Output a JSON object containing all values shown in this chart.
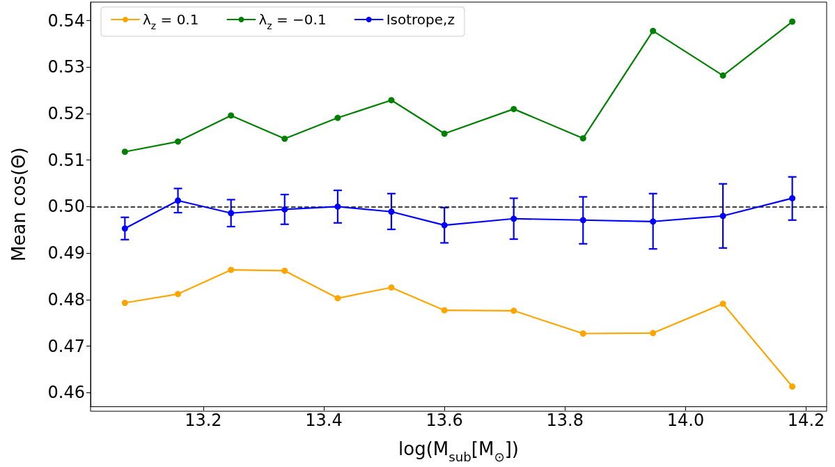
{
  "chart_data": {
    "type": "line",
    "xlabel": "log(M$_{sub}$[M$_{⊙}$])",
    "ylabel": "Mean cos(Θ)",
    "x": [
      13.07,
      13.158,
      13.246,
      13.335,
      13.423,
      13.512,
      13.6,
      13.715,
      13.83,
      13.946,
      14.062,
      14.177
    ],
    "series": [
      {
        "name": "λ$_{z}$ = 0.1",
        "color": "#ffa500",
        "values": [
          0.4793,
          0.4812,
          0.4864,
          0.4862,
          0.4803,
          0.4826,
          0.4777,
          0.4776,
          0.4727,
          0.4728,
          0.4791,
          0.4613
        ]
      },
      {
        "name": "λ$_{z}$ = −0.1",
        "color": "#008000",
        "values": [
          0.5118,
          0.514,
          0.5196,
          0.5146,
          0.5191,
          0.5229,
          0.5157,
          0.521,
          0.5147,
          0.5378,
          0.5282,
          0.5398
        ]
      },
      {
        "name": "Isotrope,z",
        "color": "#0000ff",
        "values": [
          0.4953,
          0.5013,
          0.4986,
          0.4994,
          0.5,
          0.4989,
          0.496,
          0.4974,
          0.4971,
          0.4968,
          0.498,
          0.5018
        ],
        "errors": [
          [
            0.4929,
            0.4977
          ],
          [
            0.4987,
            0.5039
          ],
          [
            0.4957,
            0.5015
          ],
          [
            0.4962,
            0.5026
          ],
          [
            0.4965,
            0.5035
          ],
          [
            0.4951,
            0.5028
          ],
          [
            0.4922,
            0.4998
          ],
          [
            0.493,
            0.5018
          ],
          [
            0.492,
            0.5021
          ],
          [
            0.4909,
            0.5028
          ],
          [
            0.4911,
            0.5049
          ],
          [
            0.4971,
            0.5064
          ]
        ]
      }
    ],
    "xlim": [
      13.013,
      14.234
    ],
    "xticks": [
      13.2,
      13.4,
      13.6,
      13.8,
      {
        "value": 14.0,
        "label": "14.0"
      },
      14.2
    ],
    "ylim": [
      0.457,
      0.544
    ],
    "yticks": [
      0.46,
      0.47,
      0.48,
      0.49,
      {
        "value": 0.5,
        "label": "0.50"
      },
      0.51,
      0.52,
      0.53,
      0.54
    ],
    "ref_lines": [
      {
        "axis": "y",
        "value": 0.5,
        "color": "#000000",
        "line_style": "dashed"
      }
    ],
    "grid": false,
    "legend": "top left",
    "marker": "circle",
    "line_style": "solid"
  }
}
